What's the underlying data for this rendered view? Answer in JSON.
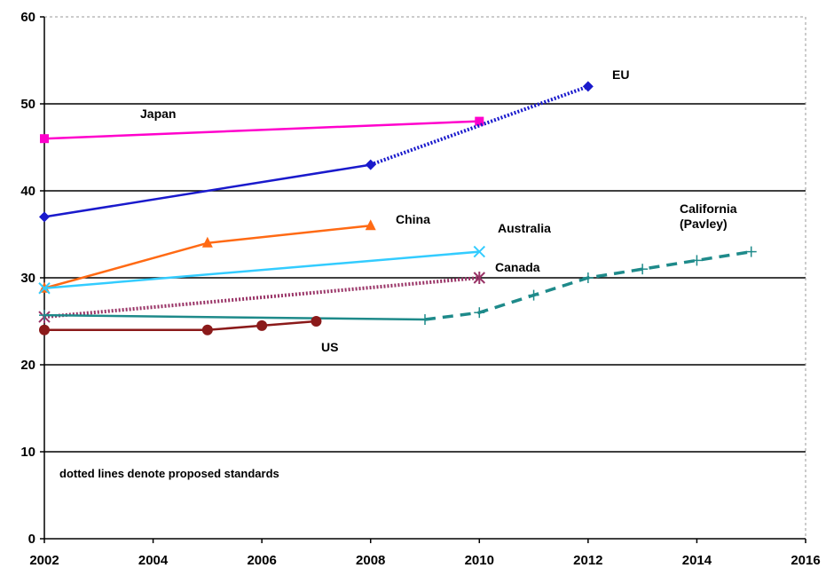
{
  "chart_data": {
    "type": "line",
    "title": "",
    "xlabel": "",
    "ylabel": "",
    "xlim": [
      2002,
      2016
    ],
    "ylim": [
      0,
      60
    ],
    "x_ticks": [
      2002,
      2004,
      2006,
      2008,
      2010,
      2012,
      2014,
      2016
    ],
    "y_ticks": [
      0,
      10,
      20,
      30,
      40,
      50,
      60
    ],
    "grid": "horizontal",
    "legend": "none (series labelled directly on the plot)",
    "note": "dotted lines denote proposed standards",
    "series": [
      {
        "name": "Japan",
        "color": "#ff00cc",
        "marker": "square",
        "points": [
          [
            2002,
            46
          ],
          [
            2010,
            48
          ]
        ],
        "proposed_points": []
      },
      {
        "name": "EU",
        "color": "#1a1acc",
        "marker": "diamond",
        "points": [
          [
            2002,
            37
          ],
          [
            2008,
            43
          ]
        ],
        "proposed_points": [
          [
            2008,
            43
          ],
          [
            2012,
            52
          ]
        ]
      },
      {
        "name": "China",
        "color": "#ff6a14",
        "marker": "triangle",
        "points": [
          [
            2002,
            28.8
          ],
          [
            2005,
            34
          ],
          [
            2008,
            36
          ]
        ],
        "proposed_points": []
      },
      {
        "name": "Australia",
        "color": "#33ccff",
        "marker": "x",
        "points": [
          [
            2002,
            28.8
          ],
          [
            2010,
            33
          ]
        ],
        "proposed_points": []
      },
      {
        "name": "Canada",
        "color": "#993366",
        "marker": "asterisk",
        "points": [],
        "proposed_points": [
          [
            2002,
            25.5
          ],
          [
            2010,
            30
          ]
        ]
      },
      {
        "name": "California\n(Pavley)",
        "color": "#1e8a8a",
        "marker": "plus",
        "points": [
          [
            2002,
            25.7
          ],
          [
            2009,
            25.2
          ]
        ],
        "proposed_points": [
          [
            2009,
            25.2
          ],
          [
            2010,
            26
          ],
          [
            2011,
            28
          ],
          [
            2012,
            30
          ],
          [
            2013,
            31
          ],
          [
            2014,
            32
          ],
          [
            2015,
            33
          ]
        ]
      },
      {
        "name": "US",
        "color": "#8b1a1a",
        "marker": "circle",
        "points": [
          [
            2002,
            24
          ],
          [
            2005,
            24
          ],
          [
            2006,
            24.5
          ],
          [
            2007,
            25
          ]
        ],
        "proposed_points": []
      }
    ]
  }
}
